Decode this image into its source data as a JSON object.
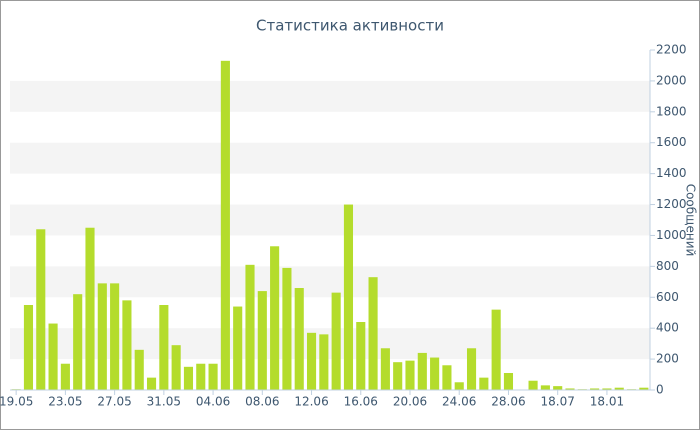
{
  "chart_data": {
    "type": "bar",
    "title": "Статистика активности",
    "y_label": "Сообщений",
    "categories": [
      "19.05",
      null,
      null,
      null,
      "23.05",
      null,
      null,
      null,
      "27.05",
      null,
      null,
      null,
      "31.05",
      null,
      null,
      null,
      "04.06",
      null,
      null,
      null,
      "08.06",
      null,
      null,
      null,
      "12.06",
      null,
      null,
      null,
      "16.06",
      null,
      null,
      null,
      "20.06",
      null,
      null,
      null,
      "24.06",
      null,
      null,
      null,
      "28.06",
      null,
      null,
      null,
      "18.07",
      null,
      null,
      null,
      "18.01",
      null,
      null,
      null
    ],
    "values": [
      5,
      550,
      1040,
      430,
      170,
      620,
      1050,
      690,
      690,
      580,
      260,
      80,
      550,
      290,
      150,
      170,
      170,
      2130,
      540,
      810,
      640,
      930,
      790,
      660,
      370,
      360,
      630,
      1200,
      440,
      730,
      270,
      180,
      190,
      240,
      210,
      160,
      50,
      270,
      80,
      520,
      110,
      0,
      60,
      30,
      25,
      10,
      5,
      10,
      10,
      15,
      5,
      15
    ],
    "color": "#b4dc2c",
    "ylim": [
      0,
      2200
    ],
    "yticks": [
      0,
      200,
      400,
      600,
      800,
      1000,
      1200,
      1400,
      1600,
      1800,
      2000,
      2200
    ],
    "grid": true
  }
}
